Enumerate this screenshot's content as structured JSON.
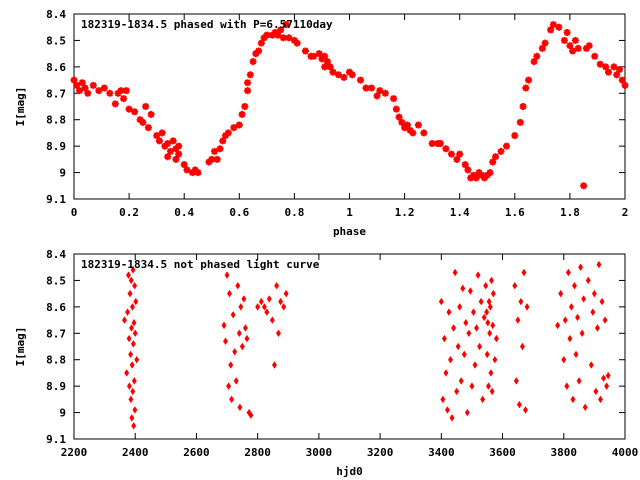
{
  "chart_data": [
    {
      "type": "scatter",
      "title": "182319-1834.5 phased with P=6.57110day",
      "xlabel": "phase",
      "ylabel": "I[mag]",
      "xlim": [
        0,
        2
      ],
      "ylim": [
        9.1,
        8.4
      ],
      "y_inverted": true,
      "grid": false,
      "marker_color": "#ff0000",
      "xticks": [
        "0",
        "0.2",
        "0.4",
        "0.6",
        "0.8",
        "1",
        "1.2",
        "1.4",
        "1.6",
        "1.8",
        "2"
      ],
      "yticks": [
        "8.4",
        "8.5",
        "8.6",
        "8.7",
        "8.8",
        "8.9",
        "9",
        "9.1"
      ],
      "points": [
        [
          0.0,
          8.65
        ],
        [
          0.01,
          8.67
        ],
        [
          0.02,
          8.69
        ],
        [
          0.03,
          8.66
        ],
        [
          0.04,
          8.68
        ],
        [
          0.05,
          8.7
        ],
        [
          0.07,
          8.67
        ],
        [
          0.09,
          8.69
        ],
        [
          0.11,
          8.68
        ],
        [
          0.13,
          8.7
        ],
        [
          0.15,
          8.74
        ],
        [
          0.16,
          8.7
        ],
        [
          0.17,
          8.69
        ],
        [
          0.18,
          8.72
        ],
        [
          0.19,
          8.69
        ],
        [
          0.2,
          8.76
        ],
        [
          0.22,
          8.77
        ],
        [
          0.24,
          8.8
        ],
        [
          0.25,
          8.81
        ],
        [
          0.26,
          8.75
        ],
        [
          0.27,
          8.83
        ],
        [
          0.28,
          8.78
        ],
        [
          0.3,
          8.86
        ],
        [
          0.31,
          8.88
        ],
        [
          0.32,
          8.85
        ],
        [
          0.33,
          8.9
        ],
        [
          0.34,
          8.89
        ],
        [
          0.34,
          8.94
        ],
        [
          0.35,
          8.92
        ],
        [
          0.36,
          8.88
        ],
        [
          0.37,
          8.91
        ],
        [
          0.37,
          8.95
        ],
        [
          0.38,
          8.93
        ],
        [
          0.38,
          8.9
        ],
        [
          0.4,
          8.97
        ],
        [
          0.41,
          8.99
        ],
        [
          0.43,
          9.0
        ],
        [
          0.44,
          8.99
        ],
        [
          0.45,
          9.0
        ],
        [
          0.49,
          8.96
        ],
        [
          0.5,
          8.95
        ],
        [
          0.51,
          8.92
        ],
        [
          0.52,
          8.95
        ],
        [
          0.53,
          8.91
        ],
        [
          0.54,
          8.88
        ],
        [
          0.55,
          8.86
        ],
        [
          0.56,
          8.85
        ],
        [
          0.58,
          8.83
        ],
        [
          0.6,
          8.82
        ],
        [
          0.61,
          8.78
        ],
        [
          0.62,
          8.75
        ],
        [
          0.63,
          8.69
        ],
        [
          0.63,
          8.66
        ],
        [
          0.64,
          8.63
        ],
        [
          0.65,
          8.58
        ],
        [
          0.66,
          8.55
        ],
        [
          0.67,
          8.54
        ],
        [
          0.68,
          8.51
        ],
        [
          0.69,
          8.49
        ],
        [
          0.7,
          8.48
        ],
        [
          0.72,
          8.48
        ],
        [
          0.73,
          8.47
        ],
        [
          0.74,
          8.48
        ],
        [
          0.75,
          8.46
        ],
        [
          0.76,
          8.49
        ],
        [
          0.77,
          8.44
        ],
        [
          0.78,
          8.49
        ],
        [
          0.8,
          8.5
        ],
        [
          0.81,
          8.51
        ],
        [
          0.84,
          8.54
        ],
        [
          0.86,
          8.56
        ],
        [
          0.87,
          8.56
        ],
        [
          0.89,
          8.55
        ],
        [
          0.9,
          8.57
        ],
        [
          0.91,
          8.56
        ],
        [
          0.91,
          8.6
        ],
        [
          0.92,
          8.58
        ],
        [
          0.93,
          8.6
        ],
        [
          0.94,
          8.62
        ],
        [
          0.96,
          8.63
        ],
        [
          0.98,
          8.64
        ],
        [
          1.0,
          8.62
        ],
        [
          1.01,
          8.63
        ],
        [
          1.04,
          8.65
        ],
        [
          1.06,
          8.68
        ],
        [
          1.08,
          8.68
        ],
        [
          1.1,
          8.71
        ],
        [
          1.11,
          8.69
        ],
        [
          1.13,
          8.7
        ],
        [
          1.16,
          8.72
        ],
        [
          1.17,
          8.76
        ],
        [
          1.18,
          8.79
        ],
        [
          1.19,
          8.81
        ],
        [
          1.2,
          8.83
        ],
        [
          1.21,
          8.82
        ],
        [
          1.22,
          8.84
        ],
        [
          1.23,
          8.85
        ],
        [
          1.25,
          8.82
        ],
        [
          1.27,
          8.85
        ],
        [
          1.3,
          8.89
        ],
        [
          1.32,
          8.89
        ],
        [
          1.33,
          8.89
        ],
        [
          1.35,
          8.91
        ],
        [
          1.37,
          8.93
        ],
        [
          1.39,
          8.95
        ],
        [
          1.4,
          8.93
        ],
        [
          1.42,
          8.97
        ],
        [
          1.43,
          8.99
        ],
        [
          1.44,
          9.02
        ],
        [
          1.45,
          9.01
        ],
        [
          1.46,
          9.02
        ],
        [
          1.47,
          9.0
        ],
        [
          1.48,
          9.01
        ],
        [
          1.49,
          9.02
        ],
        [
          1.5,
          9.01
        ],
        [
          1.51,
          9.0
        ],
        [
          1.52,
          8.96
        ],
        [
          1.53,
          8.94
        ],
        [
          1.55,
          8.92
        ],
        [
          1.57,
          8.9
        ],
        [
          1.6,
          8.86
        ],
        [
          1.62,
          8.81
        ],
        [
          1.63,
          8.75
        ],
        [
          1.64,
          8.68
        ],
        [
          1.65,
          8.65
        ],
        [
          1.67,
          8.58
        ],
        [
          1.68,
          8.56
        ],
        [
          1.7,
          8.53
        ],
        [
          1.71,
          8.51
        ],
        [
          1.73,
          8.46
        ],
        [
          1.74,
          8.44
        ],
        [
          1.76,
          8.45
        ],
        [
          1.78,
          8.5
        ],
        [
          1.79,
          8.47
        ],
        [
          1.8,
          8.52
        ],
        [
          1.81,
          8.54
        ],
        [
          1.82,
          8.5
        ],
        [
          1.83,
          8.53
        ],
        [
          1.85,
          9.05
        ],
        [
          1.86,
          8.53
        ],
        [
          1.87,
          8.52
        ],
        [
          1.89,
          8.56
        ],
        [
          1.91,
          8.59
        ],
        [
          1.93,
          8.6
        ],
        [
          1.94,
          8.62
        ],
        [
          1.96,
          8.6
        ],
        [
          1.97,
          8.63
        ],
        [
          1.98,
          8.61
        ],
        [
          1.99,
          8.65
        ],
        [
          2.0,
          8.67
        ]
      ]
    },
    {
      "type": "scatter",
      "title": "182319-1834.5 not phased light curve",
      "xlabel": "hjd0",
      "ylabel": "I[mag]",
      "xlim": [
        2200,
        4000
      ],
      "ylim": [
        9.1,
        8.4
      ],
      "y_inverted": true,
      "grid": false,
      "marker_color": "#ff0000",
      "xticks": [
        "2200",
        "2400",
        "2600",
        "2800",
        "3000",
        "3200",
        "3400",
        "3600",
        "3800",
        "4000"
      ],
      "yticks": [
        "8.4",
        "8.5",
        "8.6",
        "8.7",
        "8.8",
        "8.9",
        "9",
        "9.1"
      ],
      "points": [
        [
          2365,
          8.65
        ],
        [
          2372,
          8.85
        ],
        [
          2375,
          8.62
        ],
        [
          2378,
          8.48
        ],
        [
          2380,
          8.72
        ],
        [
          2381,
          8.9
        ],
        [
          2383,
          8.55
        ],
        [
          2385,
          8.78
        ],
        [
          2386,
          8.95
        ],
        [
          2387,
          8.5
        ],
        [
          2388,
          8.68
        ],
        [
          2389,
          9.02
        ],
        [
          2390,
          8.82
        ],
        [
          2391,
          8.6
        ],
        [
          2392,
          8.92
        ],
        [
          2393,
          8.46
        ],
        [
          2394,
          8.74
        ],
        [
          2395,
          9.05
        ],
        [
          2396,
          8.66
        ],
        [
          2397,
          8.88
        ],
        [
          2398,
          8.52
        ],
        [
          2399,
          8.99
        ],
        [
          2400,
          8.7
        ],
        [
          2402,
          8.58
        ],
        [
          2405,
          8.8
        ],
        [
          2690,
          8.67
        ],
        [
          2695,
          8.73
        ],
        [
          2700,
          8.48
        ],
        [
          2705,
          8.9
        ],
        [
          2708,
          8.55
        ],
        [
          2712,
          8.82
        ],
        [
          2715,
          8.95
        ],
        [
          2720,
          8.63
        ],
        [
          2725,
          8.77
        ],
        [
          2730,
          8.88
        ],
        [
          2735,
          8.52
        ],
        [
          2740,
          8.7
        ],
        [
          2742,
          8.98
        ],
        [
          2745,
          8.6
        ],
        [
          2750,
          8.75
        ],
        [
          2755,
          8.57
        ],
        [
          2760,
          8.68
        ],
        [
          2765,
          8.72
        ],
        [
          2772,
          9.0
        ],
        [
          2778,
          9.01
        ],
        [
          2800,
          8.6
        ],
        [
          2812,
          8.58
        ],
        [
          2822,
          8.6
        ],
        [
          2830,
          8.62
        ],
        [
          2838,
          8.57
        ],
        [
          2848,
          8.65
        ],
        [
          2855,
          8.82
        ],
        [
          2862,
          8.52
        ],
        [
          2868,
          8.7
        ],
        [
          2875,
          8.58
        ],
        [
          2885,
          8.6
        ],
        [
          2893,
          8.55
        ],
        [
          3400,
          8.58
        ],
        [
          3405,
          8.95
        ],
        [
          3410,
          8.72
        ],
        [
          3415,
          8.85
        ],
        [
          3420,
          8.99
        ],
        [
          3425,
          8.62
        ],
        [
          3430,
          8.8
        ],
        [
          3435,
          9.02
        ],
        [
          3440,
          8.68
        ],
        [
          3445,
          8.47
        ],
        [
          3450,
          8.92
        ],
        [
          3455,
          8.75
        ],
        [
          3460,
          8.6
        ],
        [
          3465,
          8.88
        ],
        [
          3470,
          8.53
        ],
        [
          3475,
          8.78
        ],
        [
          3480,
          8.66
        ],
        [
          3485,
          9.0
        ],
        [
          3490,
          8.7
        ],
        [
          3495,
          8.54
        ],
        [
          3500,
          8.9
        ],
        [
          3505,
          8.62
        ],
        [
          3510,
          8.82
        ],
        [
          3515,
          8.68
        ],
        [
          3520,
          8.48
        ],
        [
          3525,
          8.75
        ],
        [
          3530,
          8.58
        ],
        [
          3535,
          8.95
        ],
        [
          3540,
          8.64
        ],
        [
          3545,
          8.52
        ],
        [
          3548,
          8.62
        ],
        [
          3550,
          8.78
        ],
        [
          3552,
          8.66
        ],
        [
          3554,
          8.9
        ],
        [
          3556,
          8.58
        ],
        [
          3558,
          8.7
        ],
        [
          3560,
          8.6
        ],
        [
          3562,
          8.85
        ],
        [
          3564,
          8.5
        ],
        [
          3566,
          8.92
        ],
        [
          3568,
          8.67
        ],
        [
          3570,
          8.55
        ],
        [
          3575,
          8.8
        ],
        [
          3580,
          8.72
        ],
        [
          3640,
          8.52
        ],
        [
          3645,
          8.88
        ],
        [
          3650,
          8.65
        ],
        [
          3655,
          8.97
        ],
        [
          3660,
          8.58
        ],
        [
          3665,
          8.75
        ],
        [
          3670,
          8.47
        ],
        [
          3675,
          8.99
        ],
        [
          3680,
          8.6
        ],
        [
          3780,
          8.67
        ],
        [
          3790,
          8.55
        ],
        [
          3800,
          8.8
        ],
        [
          3805,
          8.65
        ],
        [
          3810,
          8.9
        ],
        [
          3815,
          8.47
        ],
        [
          3820,
          8.72
        ],
        [
          3825,
          8.6
        ],
        [
          3830,
          8.95
        ],
        [
          3835,
          8.52
        ],
        [
          3840,
          8.78
        ],
        [
          3845,
          8.64
        ],
        [
          3850,
          8.88
        ],
        [
          3855,
          8.45
        ],
        [
          3860,
          8.7
        ],
        [
          3865,
          8.57
        ],
        [
          3870,
          8.98
        ],
        [
          3880,
          8.5
        ],
        [
          3890,
          8.82
        ],
        [
          3895,
          8.62
        ],
        [
          3900,
          8.55
        ],
        [
          3905,
          8.92
        ],
        [
          3910,
          8.68
        ],
        [
          3915,
          8.44
        ],
        [
          3920,
          8.95
        ],
        [
          3925,
          8.58
        ],
        [
          3930,
          8.87
        ],
        [
          3935,
          8.65
        ],
        [
          3940,
          8.9
        ],
        [
          3945,
          8.86
        ]
      ]
    }
  ]
}
